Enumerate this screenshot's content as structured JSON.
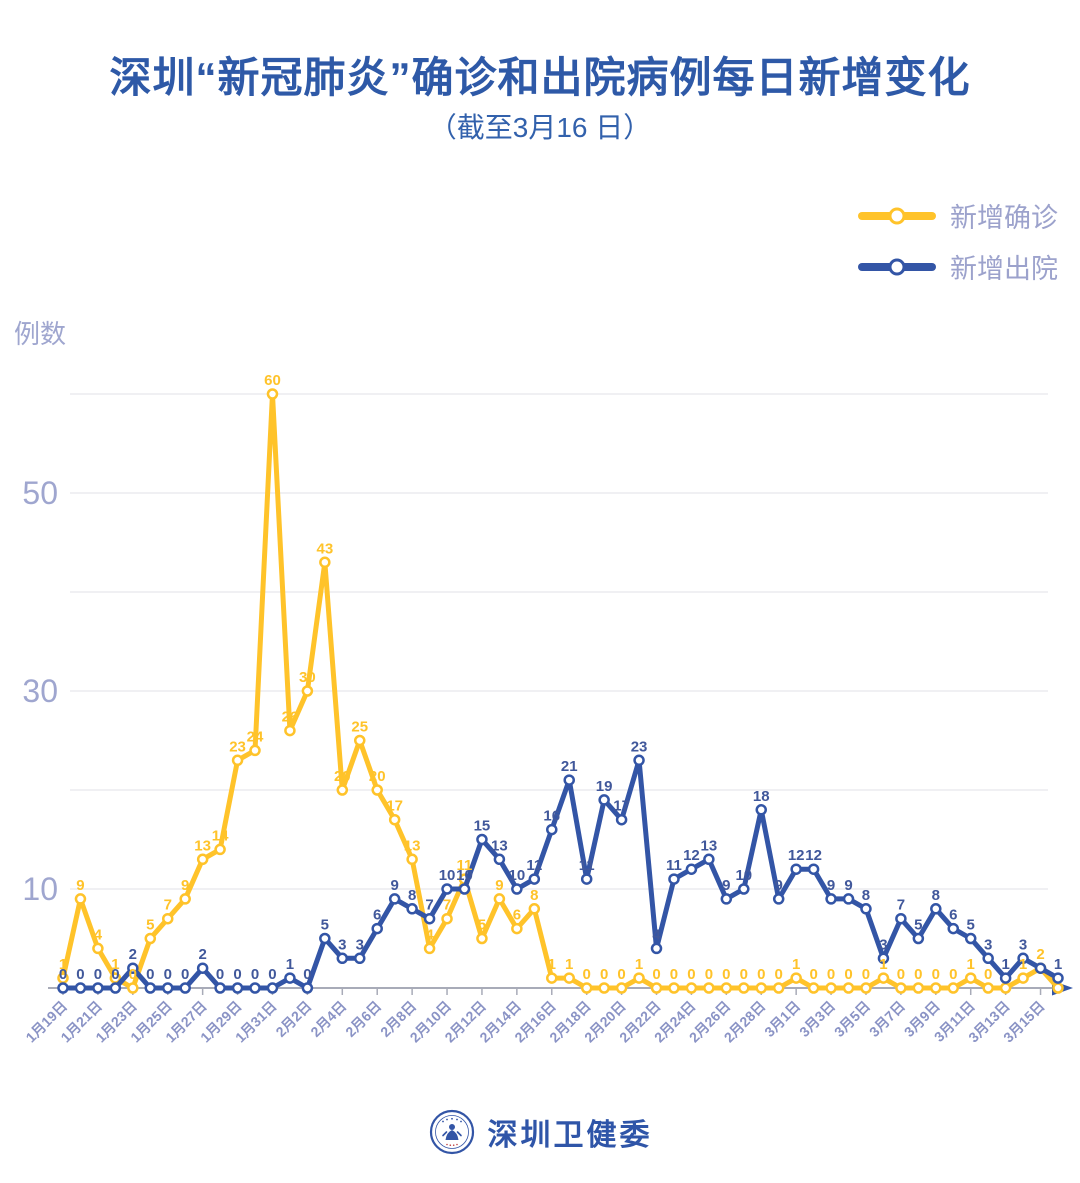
{
  "title": "深圳“新冠肺炎”确诊和出院病例每日新增变化",
  "subtitle": "（截至3月16 日）",
  "legend": [
    {
      "label": "新增确诊",
      "color": "#FFC32A"
    },
    {
      "label": "新增出院",
      "color": "#3355A6"
    }
  ],
  "y_axis": {
    "title": "例数",
    "ticks": [
      10,
      30,
      50
    ]
  },
  "footer": {
    "org": "深圳卫健委"
  },
  "colors": {
    "confirmed_line": "#FFC32A",
    "discharged_line": "#3355A6",
    "discharged_label_text": "#41589B",
    "axis_text": "#8A93C5",
    "y_tick_text": "#9FA6CF",
    "title_text": "#2E59A7",
    "legend_text": "#9CA2CC",
    "gridline": "#EBEBEF",
    "axis_line": "#A8ABB8"
  },
  "chart_data": {
    "type": "line",
    "title": "深圳“新冠肺炎”确诊和出院病例每日新增变化",
    "subtitle": "（截至3月16 日）",
    "ylabel": "例数",
    "ylim": [
      0,
      60
    ],
    "gridlines": [
      10,
      20,
      30,
      40,
      50,
      60
    ],
    "y_tick_labels": [
      10,
      30,
      50
    ],
    "grid": "horizontal",
    "legend_position": "top-right",
    "x_tick_step": 2,
    "x": [
      "1月19日",
      "1月20日",
      "1月21日",
      "1月22日",
      "1月23日",
      "1月24日",
      "1月25日",
      "1月26日",
      "1月27日",
      "1月28日",
      "1月29日",
      "1月30日",
      "1月31日",
      "2月1日",
      "2月2日",
      "2月3日",
      "2月4日",
      "2月5日",
      "2月6日",
      "2月7日",
      "2月8日",
      "2月9日",
      "2月10日",
      "2月11日",
      "2月12日",
      "2月13日",
      "2月14日",
      "2月15日",
      "2月16日",
      "2月17日",
      "2月18日",
      "2月19日",
      "2月20日",
      "2月21日",
      "2月22日",
      "2月23日",
      "2月24日",
      "2月25日",
      "2月26日",
      "2月27日",
      "2月28日",
      "2月29日",
      "3月1日",
      "3月2日",
      "3月3日",
      "3月4日",
      "3月5日",
      "3月6日",
      "3月7日",
      "3月8日",
      "3月9日",
      "3月10日",
      "3月11日",
      "3月12日",
      "3月13日",
      "3月14日",
      "3月15日",
      "3月16日"
    ],
    "series": [
      {
        "name": "新增确诊",
        "color": "#FFC32A",
        "marker": "circle-open",
        "values": [
          1,
          9,
          4,
          1,
          0,
          5,
          7,
          9,
          13,
          14,
          23,
          24,
          60,
          26,
          30,
          43,
          20,
          25,
          20,
          17,
          13,
          4,
          7,
          11,
          5,
          9,
          6,
          8,
          1,
          1,
          0,
          0,
          0,
          1,
          0,
          0,
          0,
          0,
          0,
          0,
          0,
          0,
          1,
          0,
          0,
          0,
          0,
          1,
          0,
          0,
          0,
          0,
          1,
          0,
          0,
          1,
          2,
          0
        ],
        "hidden_label_indices": [
          54,
          57
        ]
      },
      {
        "name": "新增出院",
        "color": "#3355A6",
        "label_color": "#41589B",
        "marker": "circle-open",
        "values": [
          0,
          0,
          0,
          0,
          2,
          0,
          0,
          0,
          2,
          0,
          0,
          0,
          0,
          1,
          0,
          5,
          3,
          3,
          6,
          9,
          8,
          7,
          10,
          10,
          15,
          13,
          10,
          11,
          16,
          21,
          11,
          19,
          17,
          23,
          4,
          11,
          12,
          13,
          9,
          10,
          18,
          9,
          12,
          12,
          9,
          9,
          8,
          3,
          7,
          5,
          8,
          6,
          5,
          3,
          1,
          3,
          2,
          1
        ],
        "hidden_label_indices": [
          56
        ]
      }
    ]
  }
}
